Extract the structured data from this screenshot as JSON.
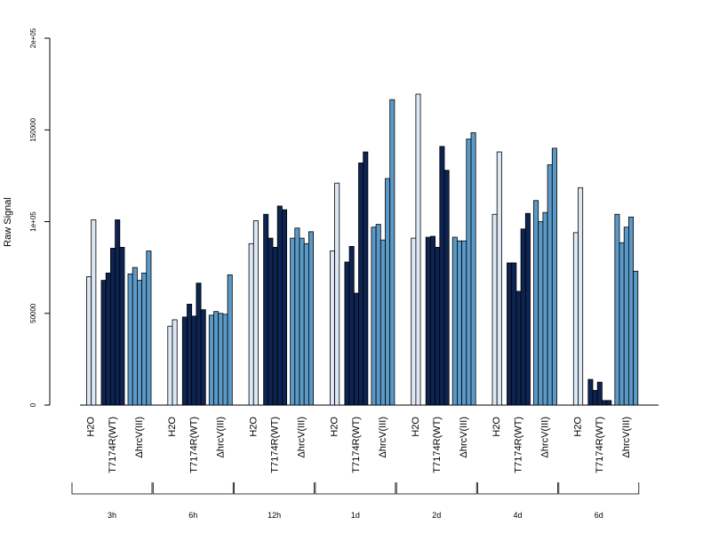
{
  "chart_data": {
    "type": "bar",
    "ylabel": "Raw Signal",
    "ylim": [
      0,
      200000
    ],
    "y_ticks": [
      {
        "value": 0,
        "label": "0"
      },
      {
        "value": 50000,
        "label": "50000"
      },
      {
        "value": 100000,
        "label": "1e+05"
      },
      {
        "value": 150000,
        "label": "150000"
      },
      {
        "value": 200000,
        "label": "2e+05"
      }
    ],
    "timepoints": [
      "3h",
      "6h",
      "12h",
      "1d",
      "2d",
      "4d",
      "6d"
    ],
    "treatments": [
      {
        "label": "H2O",
        "color": "#dde8f5"
      },
      {
        "label": "T7174R(WT)",
        "color": "#0d2452"
      },
      {
        "label": "ΔhrcV(III)",
        "color": "#5b9ac8"
      }
    ],
    "values": [
      [
        [
          70000,
          101000
        ],
        [
          68000,
          72000,
          85500,
          101000,
          86000
        ],
        [
          71500,
          75000,
          68000,
          72000,
          84000
        ]
      ],
      [
        [
          43000,
          46500
        ],
        [
          48000,
          55000,
          48500,
          66500,
          52000
        ],
        [
          49000,
          51000,
          50000,
          49500,
          71000
        ]
      ],
      [
        [
          88000,
          100500
        ],
        [
          104000,
          91000,
          86000,
          108500,
          106500
        ],
        [
          91000,
          96500,
          91000,
          88000,
          94500
        ]
      ],
      [
        [
          84000,
          121000
        ],
        [
          78000,
          86500,
          61000,
          132000,
          138000
        ],
        [
          97000,
          98500,
          90000,
          123500,
          166500
        ]
      ],
      [
        [
          91000,
          169500
        ],
        [
          91500,
          92000,
          86000,
          141000,
          128000
        ],
        [
          91500,
          89500,
          89500,
          145000,
          148500
        ]
      ],
      [
        [
          104000,
          138000
        ],
        [
          77500,
          77500,
          62000,
          96000,
          104500
        ],
        [
          111500,
          100000,
          105000,
          131000,
          140000
        ]
      ],
      [
        [
          94000,
          118500
        ],
        [
          14000,
          8000,
          12500,
          2500,
          2500
        ],
        [
          104000,
          88500,
          97000,
          102500,
          73000
        ]
      ]
    ]
  }
}
